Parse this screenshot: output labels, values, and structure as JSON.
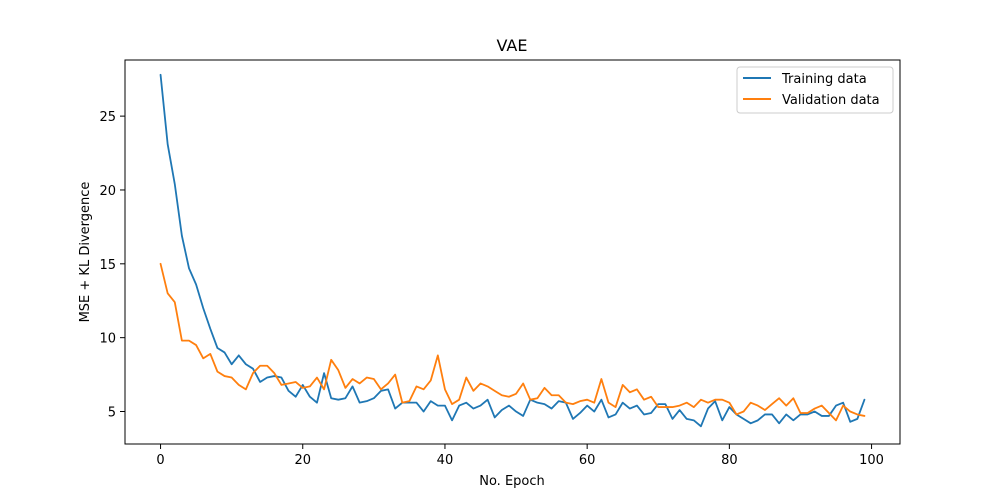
{
  "chart_data": {
    "type": "line",
    "title": "VAE",
    "xlabel": "No. Epoch",
    "ylabel": "MSE + KL Divergence",
    "xlim": [
      -5,
      104
    ],
    "ylim": [
      2.8,
      28.8
    ],
    "xticks": [
      0,
      20,
      40,
      60,
      80,
      100
    ],
    "yticks": [
      5,
      10,
      15,
      20,
      25
    ],
    "legend_position": "top-right",
    "grid": false,
    "series": [
      {
        "name": "Training data",
        "color": "#1f77b4",
        "values": [
          27.8,
          23.1,
          20.4,
          16.9,
          14.7,
          13.6,
          12.0,
          10.6,
          9.3,
          9.0,
          8.2,
          8.8,
          8.2,
          7.9,
          7.0,
          7.3,
          7.4,
          7.3,
          6.4,
          6.0,
          6.8,
          6.0,
          5.6,
          7.6,
          5.9,
          5.8,
          5.9,
          6.7,
          5.6,
          5.7,
          5.9,
          6.4,
          6.5,
          5.2,
          5.6,
          5.6,
          5.6,
          5.0,
          5.7,
          5.4,
          5.4,
          4.4,
          5.4,
          5.6,
          5.2,
          5.4,
          5.8,
          4.6,
          5.1,
          5.4,
          5.0,
          4.7,
          5.8,
          5.6,
          5.5,
          5.2,
          5.7,
          5.6,
          4.5,
          4.9,
          5.4,
          5.0,
          5.8,
          4.6,
          4.8,
          5.6,
          5.2,
          5.4,
          4.8,
          4.9,
          5.5,
          5.5,
          4.5,
          5.1,
          4.5,
          4.4,
          4.0,
          5.2,
          5.7,
          4.4,
          5.3,
          4.8,
          4.5,
          4.2,
          4.4,
          4.8,
          4.8,
          4.2,
          4.8,
          4.4,
          4.8,
          4.8,
          5.0,
          4.7,
          4.7,
          5.4,
          5.6,
          4.3,
          4.5,
          5.8
        ]
      },
      {
        "name": "Validation data",
        "color": "#ff7f0e",
        "values": [
          15.0,
          13.0,
          12.4,
          9.8,
          9.8,
          9.5,
          8.6,
          8.9,
          7.7,
          7.4,
          7.3,
          6.8,
          6.5,
          7.6,
          8.1,
          8.1,
          7.6,
          6.8,
          6.9,
          7.0,
          6.6,
          6.7,
          7.3,
          6.5,
          8.5,
          7.8,
          6.6,
          7.2,
          6.9,
          7.3,
          7.2,
          6.5,
          6.9,
          7.5,
          5.6,
          5.7,
          6.7,
          6.5,
          7.1,
          8.8,
          6.5,
          5.5,
          5.8,
          7.3,
          6.4,
          6.9,
          6.7,
          6.4,
          6.1,
          6.0,
          6.2,
          6.9,
          5.8,
          5.9,
          6.6,
          6.1,
          6.1,
          5.6,
          5.5,
          5.7,
          5.8,
          5.6,
          7.2,
          5.6,
          5.3,
          6.8,
          6.3,
          6.5,
          5.8,
          6.0,
          5.3,
          5.3,
          5.3,
          5.4,
          5.6,
          5.3,
          5.8,
          5.6,
          5.8,
          5.8,
          5.6,
          4.8,
          5.0,
          5.6,
          5.4,
          5.1,
          5.5,
          5.9,
          5.4,
          5.9,
          4.9,
          4.9,
          5.2,
          5.4,
          4.9,
          4.4,
          5.4,
          5.0,
          4.8,
          4.7
        ]
      }
    ]
  }
}
